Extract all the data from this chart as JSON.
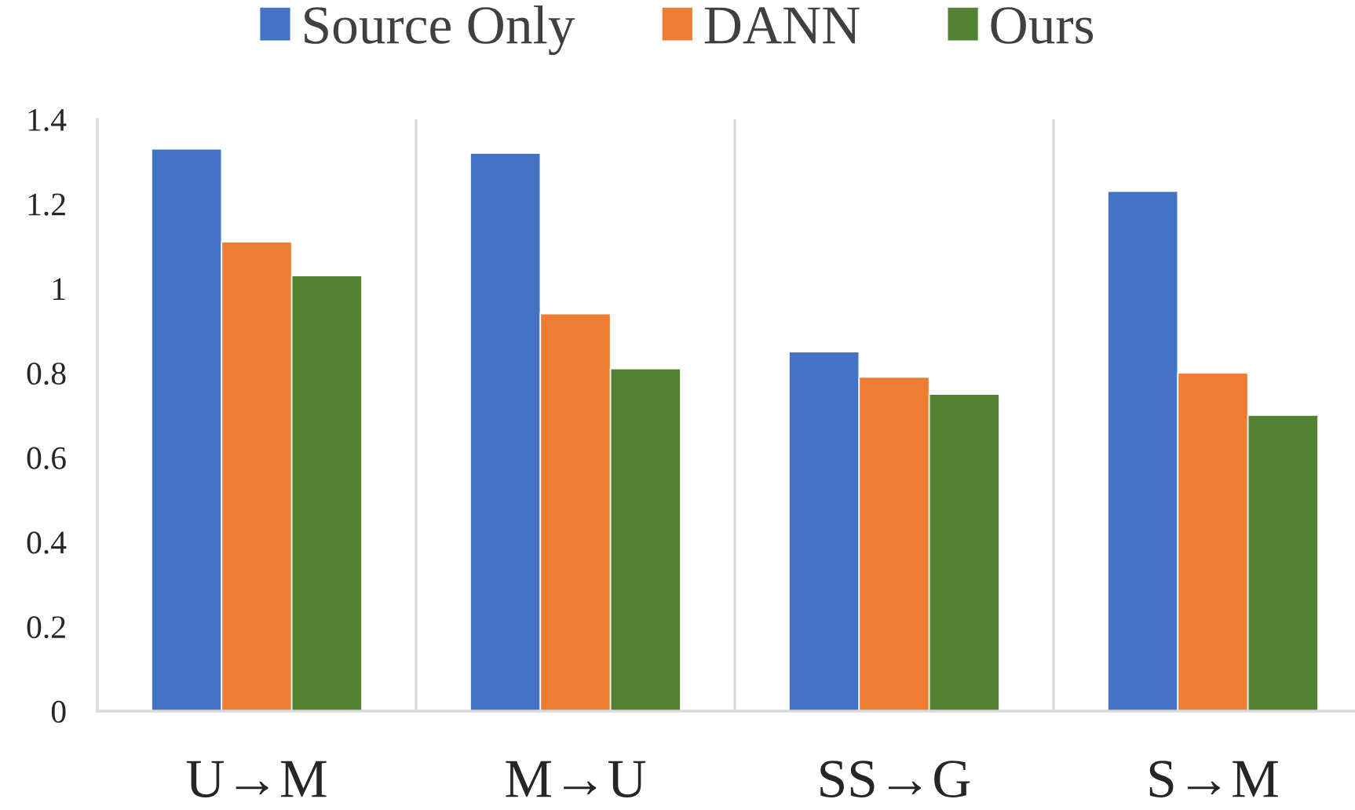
{
  "chart_data": {
    "type": "bar",
    "categories": [
      "U→M",
      "M→U",
      "SS→G",
      "S→M"
    ],
    "series": [
      {
        "name": "Source Only",
        "color": "#4472c4",
        "values": [
          1.33,
          1.32,
          0.85,
          1.23
        ]
      },
      {
        "name": "DANN",
        "color": "#ed7d31",
        "values": [
          1.11,
          0.94,
          0.79,
          0.8
        ]
      },
      {
        "name": "Ours",
        "color": "#548235",
        "values": [
          1.03,
          0.81,
          0.75,
          0.7
        ]
      }
    ],
    "ylim": [
      0,
      1.4
    ],
    "yticks": [
      0,
      0.2,
      0.4,
      0.6,
      0.8,
      1,
      1.2,
      1.4
    ],
    "grid": "x",
    "legend": "top"
  }
}
